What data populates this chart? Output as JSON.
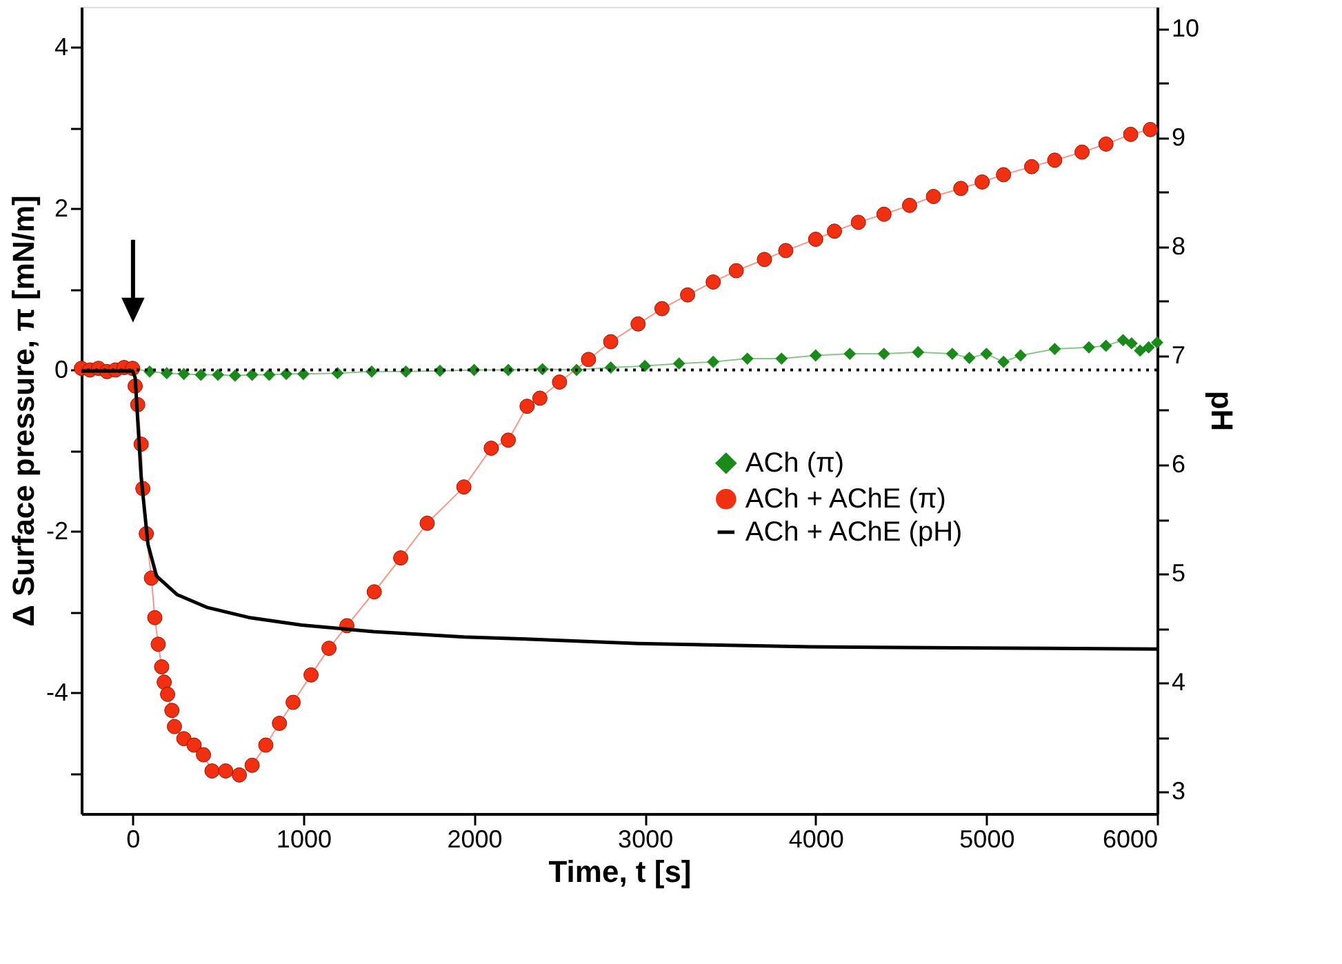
{
  "chart_data": {
    "type": "line",
    "xlabel": "Time, t [s]",
    "ylabel": "Δ Surface pressure, π [mN/m]",
    "y2label": "pH",
    "xlim": [
      -300,
      6000
    ],
    "xticks": [
      0,
      1000,
      2000,
      3000,
      4000,
      5000,
      6000
    ],
    "ylim": [
      -5.5,
      4.5
    ],
    "yticks": [
      {
        "value": -5,
        "label": null
      },
      -4,
      {
        "value": -3,
        "label": null
      },
      -2,
      {
        "value": -1,
        "label": null
      },
      0,
      {
        "value": 1,
        "label": null
      },
      2,
      {
        "value": 3,
        "label": null
      },
      4
    ],
    "y2lim": [
      2.8,
      10.2
    ],
    "y2ticks": [
      3,
      {
        "value": 3.5,
        "label": null
      },
      4,
      {
        "value": 4.5,
        "label": null
      },
      5,
      {
        "value": 5.5,
        "label": null
      },
      6,
      {
        "value": 6.5,
        "label": null
      },
      7,
      {
        "value": 7.5,
        "label": null
      },
      8,
      {
        "value": 8.5,
        "label": null
      },
      9,
      {
        "value": 9.5,
        "label": null
      },
      10
    ],
    "grid": false,
    "legend": "right",
    "ref_lines": [
      {
        "axis": "y",
        "value": 0,
        "line_style": "dotted",
        "color": "#000000"
      }
    ],
    "series": [
      {
        "name": "ACh (π)",
        "color": "#1a8a1a",
        "marker": "diamond",
        "line_style": "solid",
        "x": [
          0,
          100,
          200,
          300,
          400,
          500,
          600,
          700,
          800,
          900,
          1000,
          1200,
          1400,
          1600,
          1800,
          2000,
          2200,
          2400,
          2600,
          2800,
          3000,
          3200,
          3400,
          3600,
          3800,
          4000,
          4200,
          4400,
          4600,
          4800,
          4900,
          5000,
          5100,
          5200,
          5400,
          5600,
          5700,
          5800,
          5850,
          5900,
          5950,
          6000
        ],
        "values": [
          0.02,
          -0.02,
          -0.04,
          -0.05,
          -0.06,
          -0.06,
          -0.07,
          -0.06,
          -0.06,
          -0.05,
          -0.05,
          -0.04,
          -0.02,
          -0.02,
          -0.01,
          0.0,
          0.0,
          0.01,
          0.0,
          0.03,
          0.05,
          0.08,
          0.1,
          0.14,
          0.14,
          0.18,
          0.2,
          0.2,
          0.22,
          0.2,
          0.15,
          0.2,
          0.1,
          0.18,
          0.26,
          0.28,
          0.3,
          0.37,
          0.33,
          0.24,
          0.28,
          0.34
        ]
      },
      {
        "name": "ACh + AChE (π)",
        "color": "#f03010",
        "marker": "circle",
        "line_style": "solid",
        "x": [
          -300,
          -250,
          -200,
          -150,
          -100,
          -50,
          0,
          15,
          30,
          50,
          60,
          80,
          110,
          130,
          150,
          170,
          185,
          205,
          230,
          245,
          300,
          360,
          415,
          465,
          545,
          625,
          700,
          780,
          860,
          940,
          1045,
          1150,
          1255,
          1415,
          1570,
          1725,
          1940,
          2100,
          2200,
          2310,
          2385,
          2500,
          2670,
          2800,
          2960,
          3100,
          3250,
          3400,
          3535,
          3700,
          3825,
          4000,
          4110,
          4250,
          4400,
          4550,
          4690,
          4850,
          4975,
          5100,
          5265,
          5400,
          5560,
          5700,
          5845,
          5960
        ],
        "values": [
          0.02,
          0.0,
          0.02,
          -0.02,
          0.0,
          0.03,
          0.02,
          -0.2,
          -0.43,
          -0.92,
          -1.47,
          -2.03,
          -2.58,
          -3.07,
          -3.4,
          -3.68,
          -3.87,
          -4.02,
          -4.22,
          -4.42,
          -4.57,
          -4.65,
          -4.77,
          -4.97,
          -4.97,
          -5.02,
          -4.9,
          -4.65,
          -4.38,
          -4.12,
          -3.78,
          -3.45,
          -3.17,
          -2.75,
          -2.33,
          -1.9,
          -1.45,
          -0.97,
          -0.87,
          -0.45,
          -0.35,
          -0.15,
          0.13,
          0.35,
          0.57,
          0.76,
          0.93,
          1.09,
          1.23,
          1.37,
          1.48,
          1.62,
          1.72,
          1.83,
          1.93,
          2.04,
          2.15,
          2.25,
          2.33,
          2.42,
          2.52,
          2.6,
          2.7,
          2.8,
          2.92,
          2.98
        ]
      },
      {
        "name": "ACh + AChE (pH)",
        "color": "#000000",
        "marker": "none",
        "line_style": "solid",
        "axis": "y2",
        "x": [
          -300,
          0,
          15,
          50,
          90,
          140,
          260,
          440,
          680,
          990,
          1410,
          1940,
          2330,
          2960,
          3970,
          4975,
          6000
        ],
        "values": [
          6.86,
          6.86,
          6.8,
          5.89,
          5.27,
          4.98,
          4.81,
          4.69,
          4.6,
          4.53,
          4.47,
          4.42,
          4.4,
          4.36,
          4.33,
          4.32,
          4.31
        ]
      }
    ]
  }
}
